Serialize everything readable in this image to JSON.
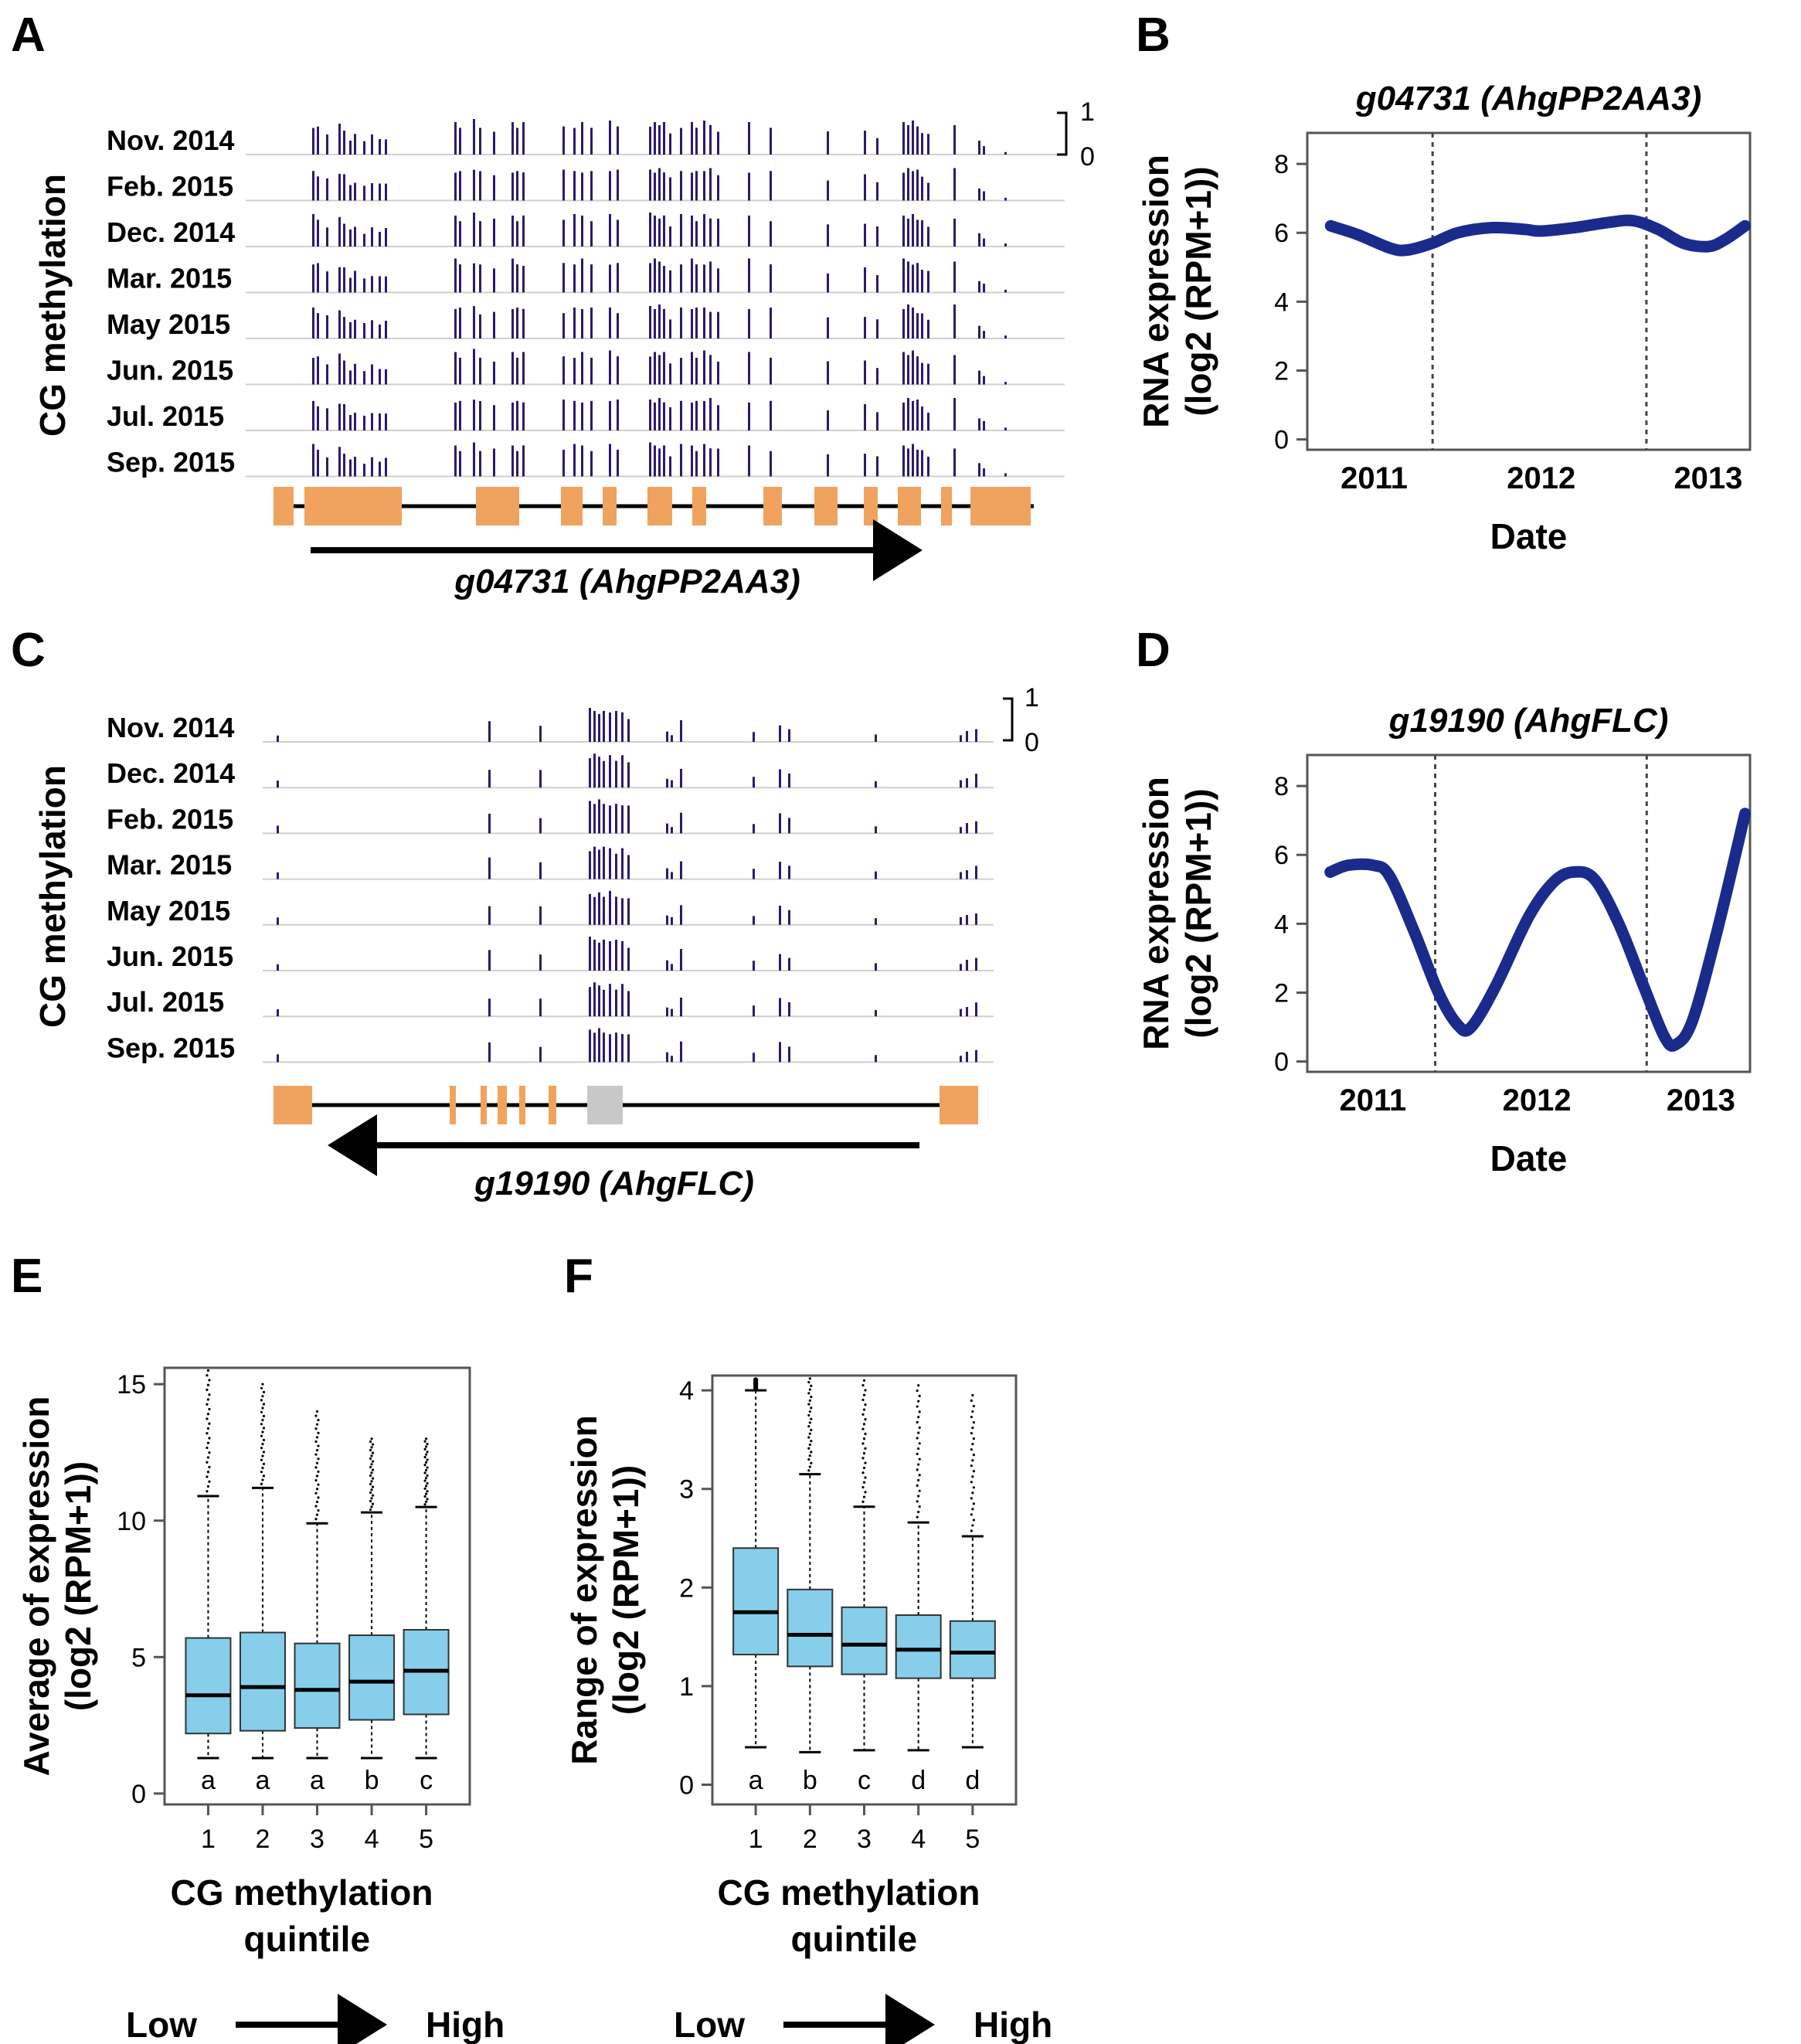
{
  "panels": {
    "A": "A",
    "B": "B",
    "C": "C",
    "D": "D",
    "E": "E",
    "F": "F"
  },
  "methyl_ylabel": "CG methylation",
  "scale_labels": {
    "top": "1",
    "bottom": "0"
  },
  "panelA": {
    "tracks": [
      "Nov. 2014",
      "Feb. 2015",
      "Dec. 2014",
      "Mar. 2015",
      "May 2015",
      "Jun. 2015",
      "Jul. 2015",
      "Sep. 2015"
    ],
    "gene_label": {
      "id": "g04731",
      "name": "AhgPP2AA3"
    },
    "colors": {
      "bars": "#2e1a6b",
      "exon": "#f0a35e",
      "track_line": "#cfcfcf"
    }
  },
  "panelC": {
    "tracks": [
      "Nov. 2014",
      "Dec. 2014",
      "Feb. 2015",
      "Mar. 2015",
      "May 2015",
      "Jun. 2015",
      "Jul. 2015",
      "Sep. 2015"
    ],
    "gene_label": {
      "id": "g19190",
      "name": "AhgFLC"
    },
    "colors": {
      "bars": "#2e1a6b",
      "exon": "#f0a35e",
      "grey_exon": "#c8c8c8"
    }
  },
  "chart_data": [
    {
      "panel": "B",
      "type": "line",
      "title": "g04731 (AhgPP2AA3)",
      "xlabel": "Date",
      "ylabel": "RNA expression",
      "ylabel2": "(log2 (RPM+1))",
      "xlim": [
        2010.6,
        2013.25
      ],
      "ylim": [
        -0.3,
        8.9
      ],
      "xticks": [
        2011,
        2012,
        2013
      ],
      "yticks": [
        0,
        2,
        4,
        6,
        8
      ],
      "vlines": [
        2011.35,
        2012.63
      ],
      "x": [
        2010.74,
        2010.9,
        2011.1,
        2011.2,
        2011.35,
        2011.5,
        2011.7,
        2011.9,
        2012.0,
        2012.2,
        2012.4,
        2012.55,
        2012.7,
        2012.85,
        2013.0,
        2013.1,
        2013.22
      ],
      "y": [
        6.2,
        5.95,
        5.55,
        5.5,
        5.7,
        6.0,
        6.15,
        6.1,
        6.05,
        6.15,
        6.3,
        6.35,
        6.1,
        5.7,
        5.6,
        5.8,
        6.2
      ],
      "color": "#1a2b8c"
    },
    {
      "panel": "D",
      "type": "line",
      "title": "g19190 (AhgFLC)",
      "xlabel": "Date",
      "ylabel": "RNA expression",
      "ylabel2": "(log2 (RPM+1))",
      "xlim": [
        2010.6,
        2013.3
      ],
      "ylim": [
        -0.3,
        8.9
      ],
      "xticks": [
        2011,
        2012,
        2013
      ],
      "yticks": [
        0,
        2,
        4,
        6,
        8
      ],
      "vlines": [
        2011.38,
        2012.67
      ],
      "x": [
        2010.74,
        2010.85,
        2011.0,
        2011.1,
        2011.25,
        2011.4,
        2011.52,
        2011.6,
        2011.75,
        2011.95,
        2012.1,
        2012.22,
        2012.35,
        2012.5,
        2012.65,
        2012.78,
        2012.85,
        2012.95,
        2013.1,
        2013.27
      ],
      "y": [
        5.5,
        5.7,
        5.7,
        5.4,
        3.8,
        2.0,
        1.05,
        1.0,
        2.2,
        4.2,
        5.2,
        5.5,
        5.3,
        4.0,
        2.2,
        0.7,
        0.5,
        1.2,
        3.8,
        7.2
      ],
      "color": "#1a2b8c"
    },
    {
      "panel": "E",
      "type": "box",
      "xlabel": "CG methylation",
      "xlabel2": "quintile",
      "ylabel": "Average of expression",
      "ylabel2": "(log2 (RPM+1))",
      "ylim": [
        -0.4,
        15.6
      ],
      "yticks": [
        0,
        5,
        10,
        15
      ],
      "categories": [
        "1",
        "2",
        "3",
        "4",
        "5"
      ],
      "letters": [
        "a",
        "a",
        "a",
        "b",
        "c"
      ],
      "boxes": [
        {
          "min": 1.3,
          "q1": 2.2,
          "median": 3.6,
          "q3": 5.7,
          "max": 10.9,
          "outlier_top": 15.5
        },
        {
          "min": 1.3,
          "q1": 2.3,
          "median": 3.9,
          "q3": 5.9,
          "max": 11.2,
          "outlier_top": 15.0
        },
        {
          "min": 1.3,
          "q1": 2.4,
          "median": 3.8,
          "q3": 5.5,
          "max": 9.9,
          "outlier_top": 14.0
        },
        {
          "min": 1.3,
          "q1": 2.7,
          "median": 4.1,
          "q3": 5.8,
          "max": 10.3,
          "outlier_top": 13.0
        },
        {
          "min": 1.3,
          "q1": 2.9,
          "median": 4.5,
          "q3": 6.0,
          "max": 10.5,
          "outlier_top": 13.0
        }
      ],
      "color": "#87ceeb",
      "arrow": {
        "low": "Low",
        "high": "High"
      }
    },
    {
      "panel": "F",
      "type": "box",
      "xlabel": "CG methylation",
      "xlabel2": "quintile",
      "ylabel": "Range of expression",
      "ylabel2": "(log2 (RPM+1))",
      "ylim": [
        -0.2,
        4.15
      ],
      "yticks": [
        0,
        1,
        2,
        3,
        4
      ],
      "categories": [
        "1",
        "2",
        "3",
        "4",
        "5"
      ],
      "letters": [
        "a",
        "b",
        "c",
        "d",
        "d"
      ],
      "boxes": [
        {
          "min": 0.38,
          "q1": 1.32,
          "median": 1.75,
          "q3": 2.4,
          "max": 4.0,
          "outlier_top": 4.12
        },
        {
          "min": 0.33,
          "q1": 1.2,
          "median": 1.52,
          "q3": 1.98,
          "max": 3.15,
          "outlier_top": 4.12
        },
        {
          "min": 0.35,
          "q1": 1.12,
          "median": 1.42,
          "q3": 1.8,
          "max": 2.82,
          "outlier_top": 4.1
        },
        {
          "min": 0.35,
          "q1": 1.08,
          "median": 1.37,
          "q3": 1.72,
          "max": 2.66,
          "outlier_top": 4.05
        },
        {
          "min": 0.38,
          "q1": 1.08,
          "median": 1.34,
          "q3": 1.66,
          "max": 2.52,
          "outlier_top": 3.95
        }
      ],
      "color": "#87ceeb",
      "arrow": {
        "low": "Low",
        "high": "High"
      }
    }
  ]
}
